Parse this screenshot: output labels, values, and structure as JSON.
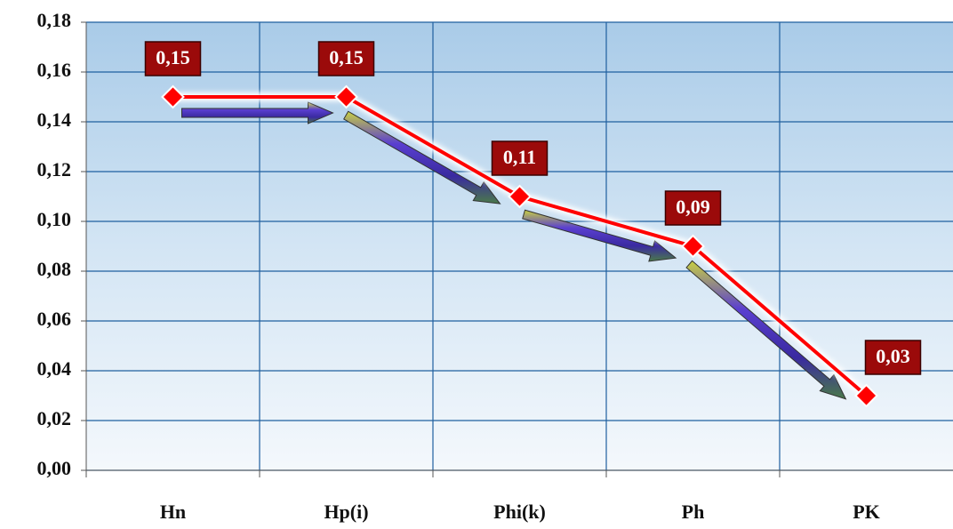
{
  "chart_data": {
    "type": "line",
    "categories": [
      "Hn",
      "Hp(i)",
      "Phi(k)",
      "Ph",
      "PK"
    ],
    "values": [
      0.15,
      0.15,
      0.11,
      0.09,
      0.03
    ],
    "value_labels": [
      "0,15",
      "0,15",
      "0,11",
      "0,09",
      "0,03"
    ],
    "color": "#ff0000",
    "ylim": [
      0,
      0.18
    ],
    "yticks": [
      {
        "value": 0,
        "label": "0,00"
      },
      {
        "value": 0.02,
        "label": "0,02"
      },
      {
        "value": 0.04,
        "label": "0,04"
      },
      {
        "value": 0.06,
        "label": "0,06"
      },
      {
        "value": 0.08,
        "label": "0,08"
      },
      {
        "value": 0.1,
        "label": "0,10"
      },
      {
        "value": 0.12,
        "label": "0,12"
      },
      {
        "value": 0.14,
        "label": "0,14"
      },
      {
        "value": 0.16,
        "label": "0,16"
      },
      {
        "value": 0.18,
        "label": "0,18"
      }
    ],
    "grid": true
  }
}
